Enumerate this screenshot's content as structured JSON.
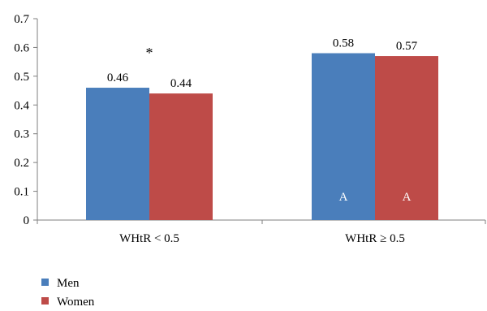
{
  "chart_data": {
    "type": "bar",
    "categories": [
      "WHtR < 0.5",
      "WHtR ≥ 0.5"
    ],
    "series": [
      {
        "name": "Men",
        "values": [
          0.46,
          0.58
        ],
        "color": "#4a7ebb"
      },
      {
        "name": "Women",
        "values": [
          0.44,
          0.57
        ],
        "color": "#be4b48"
      }
    ],
    "data_labels": [
      [
        "0.46",
        "0.58"
      ],
      [
        "0.44",
        "0.57"
      ]
    ],
    "in_bar_labels": [
      [
        "",
        "A"
      ],
      [
        "",
        "A"
      ]
    ],
    "annotations": [
      {
        "text": "*",
        "category_index": 0
      }
    ],
    "ylim": [
      0,
      0.7
    ],
    "yticks": [
      "0",
      "0.1",
      "0.2",
      "0.3",
      "0.4",
      "0.5",
      "0.6",
      "0.7"
    ],
    "ytick_values": [
      0,
      0.1,
      0.2,
      0.3,
      0.4,
      0.5,
      0.6,
      0.7
    ],
    "grid": false,
    "legend_position": "bottom-left",
    "title": "",
    "xlabel": "",
    "ylabel": ""
  }
}
